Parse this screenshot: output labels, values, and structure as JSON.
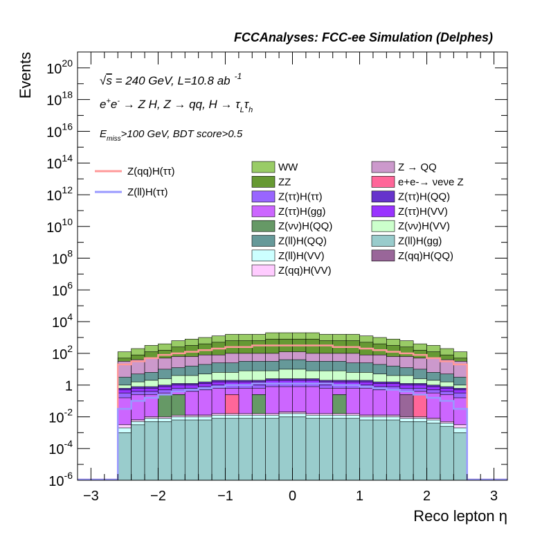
{
  "chart_data": {
    "type": "stacked-histogram",
    "title": "FCCAnalyses: FCC-ee Simulation (Delphes)",
    "xlabel": "Reco lepton η",
    "ylabel": "Events",
    "xlim": [
      -3.2,
      3.2
    ],
    "ylim_log10": [
      -6,
      21
    ],
    "y_scale": "log",
    "grid": false,
    "x_ticks": [
      "−3",
      "−2",
      "−1",
      "0",
      "1",
      "2",
      "3"
    ],
    "y_ticks": [
      {
        "base": "10",
        "exp": "20",
        "log": 20
      },
      {
        "base": "10",
        "exp": "18",
        "log": 18
      },
      {
        "base": "10",
        "exp": "16",
        "log": 16
      },
      {
        "base": "10",
        "exp": "14",
        "log": 14
      },
      {
        "base": "10",
        "exp": "12",
        "log": 12
      },
      {
        "base": "10",
        "exp": "10",
        "log": 10
      },
      {
        "base": "10",
        "exp": "8",
        "log": 8
      },
      {
        "base": "10",
        "exp": "6",
        "log": 6
      },
      {
        "base": "10",
        "exp": "4",
        "log": 4
      },
      {
        "base": "10",
        "exp": "2",
        "log": 2
      },
      {
        "base": "1",
        "exp": "",
        "log": 0
      },
      {
        "base": "10",
        "exp": "-2",
        "log": -2
      },
      {
        "base": "10",
        "exp": "-4",
        "log": -4
      },
      {
        "base": "10",
        "exp": "-6",
        "log": -6
      }
    ],
    "annotations": {
      "energy": {
        "sqrt": "√",
        "s": "s",
        "text": " = 240 GeV, L=10.8 ab",
        "sup": "-1"
      },
      "process": {
        "ep": "e",
        "epsup": "+",
        "em": "e",
        "emsup": "-",
        "rest": " → Z H, Z  → qq, H  → τ",
        "sub1": "L",
        "tau2": "τ",
        "sub2": "h"
      },
      "cuts": {
        "e": "E",
        "sub": "miss",
        "rest": ">100 GeV, BDT score>0.5"
      }
    },
    "bin_edges_start": -2.6,
    "bin_width": 0.2,
    "n_bins": 26,
    "stack_order": [
      "Z(ll)H(gg)",
      "Z(ll)H(VV)",
      "Z(qq)H(VV)",
      "Z(νν)H(QQ)",
      "e+e-→νeνe Z",
      "Z(qq)H(QQ)",
      "Z(ττ)H(gg)",
      "Z(ττ)H(ττ)",
      "Z(ττ)H(VV)",
      "Z(ττ)H(QQ)",
      "Z(νν)H(VV)",
      "Z(ll)H(QQ)",
      "Z → QQ",
      "ZZ",
      "WW"
    ],
    "stacked_series": [
      {
        "name": "Z(ll)H(gg)",
        "color": "#99cccc",
        "log10_values": [
          -3.0,
          -2.5,
          -2.3,
          -2.3,
          -2.2,
          -2.2,
          -2.2,
          -2.1,
          -2.1,
          -2.1,
          -2.1,
          -2.1,
          -2.0,
          -2.0,
          -2.1,
          -2.1,
          -2.1,
          -2.1,
          -2.2,
          -2.2,
          -2.2,
          -2.3,
          -2.3,
          -2.4,
          -2.6,
          -3.0
        ]
      },
      {
        "name": "Z(ll)H(VV)",
        "color": "#ccffff",
        "log10_values": [
          -2.7,
          -2.3,
          -2.1,
          -2.1,
          -2.0,
          -2.0,
          -2.0,
          -1.9,
          -1.9,
          -1.9,
          -1.9,
          -1.9,
          -1.8,
          -1.8,
          -1.9,
          -1.9,
          -1.9,
          -1.9,
          -2.0,
          -2.0,
          -2.0,
          -2.1,
          -2.1,
          -2.2,
          -2.4,
          -2.7
        ]
      },
      {
        "name": "Z(qq)H(VV)",
        "color": "#ffccff",
        "log10_values": [
          -2.5,
          -2.2,
          -2.0,
          -2.0,
          -1.9,
          -1.9,
          -1.9,
          -1.8,
          -1.8,
          -1.8,
          -1.8,
          -1.8,
          -1.7,
          -1.7,
          -1.8,
          -1.8,
          -1.8,
          -1.8,
          -1.9,
          -1.9,
          -1.9,
          -2.0,
          -2.0,
          -2.1,
          -2.3,
          -2.5
        ]
      },
      {
        "name": "Z(νν)H(QQ)",
        "color": "#669966",
        "log10_values": [
          -2.5,
          -2.2,
          -2.0,
          -0.6,
          -0.6,
          -1.9,
          -1.9,
          -1.8,
          -1.8,
          -1.8,
          -0.6,
          -1.8,
          -1.7,
          -1.7,
          -1.8,
          -1.8,
          -0.6,
          -1.8,
          -1.9,
          -1.9,
          -1.9,
          -2.0,
          -2.0,
          -2.1,
          -2.3,
          -2.5
        ]
      },
      {
        "name": "e+e-→νeνe Z",
        "color": "#ff6699",
        "log10_values": [
          -2.5,
          -2.2,
          -2.0,
          -0.6,
          -0.6,
          -1.9,
          -1.9,
          -1.8,
          -0.6,
          -1.8,
          -0.6,
          -1.8,
          -1.7,
          -1.7,
          -1.8,
          -1.8,
          -0.6,
          -1.8,
          -1.9,
          -1.9,
          -1.9,
          -2.0,
          -0.6,
          -2.1,
          -2.3,
          -2.5
        ]
      },
      {
        "name": "Z(qq)H(QQ)",
        "color": "#996699",
        "log10_values": [
          -2.5,
          -2.2,
          -2.0,
          -0.6,
          -0.6,
          -1.9,
          -1.9,
          -1.8,
          -0.6,
          -1.8,
          -0.6,
          -1.8,
          -1.7,
          -1.7,
          -1.8,
          -1.8,
          -0.6,
          -1.8,
          -1.9,
          -1.9,
          -1.9,
          -0.6,
          -0.6,
          -2.1,
          -2.3,
          -2.5
        ]
      },
      {
        "name": "Z(ττ)H(gg)",
        "color": "#cc66ff",
        "log10_values": [
          -0.8,
          -0.6,
          -0.6,
          -0.5,
          -0.4,
          -0.4,
          -0.3,
          -0.2,
          -0.2,
          -0.2,
          -0.2,
          -0.1,
          -0.1,
          -0.1,
          -0.1,
          -0.2,
          -0.2,
          -0.2,
          -0.2,
          -0.3,
          -0.3,
          -0.4,
          -0.4,
          -0.5,
          -0.6,
          -0.8
        ]
      },
      {
        "name": "Z(ττ)H(ττ)",
        "color": "#9966ff",
        "log10_values": [
          -0.5,
          -0.4,
          -0.4,
          -0.3,
          -0.2,
          -0.2,
          -0.1,
          0.0,
          0.0,
          0.0,
          0.0,
          0.1,
          0.1,
          0.1,
          0.1,
          0.0,
          0.0,
          0.0,
          0.0,
          -0.1,
          -0.1,
          -0.2,
          -0.2,
          -0.3,
          -0.4,
          -0.5
        ]
      },
      {
        "name": "Z(ττ)H(VV)",
        "color": "#9933ff",
        "log10_values": [
          -0.3,
          -0.2,
          -0.2,
          -0.1,
          0.0,
          0.0,
          0.1,
          0.2,
          0.2,
          0.2,
          0.2,
          0.3,
          0.3,
          0.3,
          0.3,
          0.2,
          0.2,
          0.2,
          0.2,
          0.1,
          0.1,
          0.0,
          0.0,
          -0.1,
          -0.2,
          -0.3
        ]
      },
      {
        "name": "Z(ττ)H(QQ)",
        "color": "#6633cc",
        "log10_values": [
          -0.2,
          -0.1,
          -0.1,
          0.0,
          0.1,
          0.1,
          0.2,
          0.3,
          0.3,
          0.3,
          0.3,
          0.4,
          0.4,
          0.4,
          0.4,
          0.3,
          0.3,
          0.3,
          0.3,
          0.2,
          0.2,
          0.1,
          0.1,
          0.0,
          -0.1,
          -0.2
        ]
      },
      {
        "name": "Z(νν)H(VV)",
        "color": "#ccffcc",
        "log10_values": [
          0.0,
          0.2,
          0.3,
          0.4,
          0.6,
          0.6,
          0.7,
          0.8,
          0.8,
          0.9,
          0.9,
          0.9,
          1.0,
          1.0,
          0.9,
          0.9,
          0.9,
          0.8,
          0.8,
          0.7,
          0.6,
          0.6,
          0.4,
          0.3,
          0.2,
          0.0
        ]
      },
      {
        "name": "Z(ll)H(QQ)",
        "color": "#669999",
        "log10_values": [
          0.5,
          0.7,
          0.8,
          1.0,
          1.1,
          1.2,
          1.3,
          1.4,
          1.4,
          1.5,
          1.5,
          1.5,
          1.6,
          1.6,
          1.5,
          1.5,
          1.5,
          1.4,
          1.4,
          1.3,
          1.2,
          1.1,
          1.0,
          0.8,
          0.7,
          0.5
        ]
      },
      {
        "name": "Z → QQ",
        "color": "#cc99cc",
        "log10_values": [
          1.5,
          1.6,
          1.7,
          1.7,
          1.8,
          1.8,
          1.9,
          1.9,
          2.0,
          2.0,
          2.0,
          2.0,
          2.1,
          2.1,
          2.0,
          2.0,
          2.0,
          2.0,
          1.9,
          1.9,
          1.8,
          1.8,
          1.7,
          1.7,
          1.6,
          1.5
        ]
      },
      {
        "name": "ZZ",
        "color": "#669933",
        "log10_values": [
          1.7,
          1.9,
          2.1,
          2.2,
          2.4,
          2.5,
          2.6,
          2.7,
          2.8,
          2.8,
          2.8,
          2.9,
          2.9,
          2.9,
          2.9,
          2.8,
          2.8,
          2.8,
          2.7,
          2.6,
          2.5,
          2.4,
          2.2,
          2.1,
          1.9,
          1.7
        ]
      },
      {
        "name": "WW",
        "color": "#99cc66",
        "log10_values": [
          2.1,
          2.3,
          2.5,
          2.6,
          2.8,
          2.9,
          3.0,
          3.1,
          3.2,
          3.2,
          3.2,
          3.3,
          3.3,
          3.3,
          3.3,
          3.2,
          3.2,
          3.2,
          3.1,
          3.0,
          2.9,
          2.8,
          2.6,
          2.5,
          2.3,
          2.1
        ]
      }
    ],
    "line_series": [
      {
        "name": "Z(qq)H(ττ)",
        "color": "#ff9999",
        "log10_values": [
          1.3,
          1.5,
          1.7,
          1.9,
          2.0,
          2.1,
          2.2,
          2.3,
          2.4,
          2.4,
          2.5,
          2.5,
          2.5,
          2.5,
          2.5,
          2.5,
          2.4,
          2.4,
          2.3,
          2.2,
          2.1,
          2.0,
          1.9,
          1.7,
          1.5,
          1.3
        ]
      },
      {
        "name": "Z(ll)H(ττ)",
        "color": "#9999ff",
        "log10_values": [
          -1.5,
          -1.0,
          -0.8,
          -0.6,
          -0.4,
          -0.3,
          -0.2,
          -0.1,
          0.0,
          0.0,
          0.1,
          0.1,
          0.1,
          0.1,
          0.1,
          0.1,
          0.0,
          0.0,
          -0.1,
          -0.2,
          -0.3,
          -0.4,
          -0.6,
          -0.8,
          -1.0,
          -1.5
        ]
      }
    ],
    "legend_left": [
      {
        "name": "Z(qq)H(ττ)",
        "color": "#ff9999"
      },
      {
        "name": "Z(ll)H(ττ)",
        "color": "#9999ff"
      }
    ],
    "legend_col1": [
      {
        "name": "WW",
        "color": "#99cc66"
      },
      {
        "name": "ZZ",
        "color": "#669933"
      },
      {
        "name": "Z(ττ)H(ττ)",
        "color": "#9966ff"
      },
      {
        "name": "Z(ττ)H(gg)",
        "color": "#cc66ff"
      },
      {
        "name": "Z(νν)H(QQ)",
        "color": "#669966"
      },
      {
        "name": "Z(ll)H(QQ)",
        "color": "#669999"
      },
      {
        "name": "Z(ll)H(VV)",
        "color": "#ccffff"
      },
      {
        "name": "Z(qq)H(VV)",
        "color": "#ffccff"
      }
    ],
    "legend_col2": [
      {
        "name": "Z → QQ",
        "color": "#cc99cc"
      },
      {
        "name": "e+e-→ νeνe Z",
        "color": "#ff6699"
      },
      {
        "name": "Z(ττ)H(QQ)",
        "color": "#6633cc"
      },
      {
        "name": "Z(ττ)H(VV)",
        "color": "#9933ff"
      },
      {
        "name": "Z(νν)H(VV)",
        "color": "#ccffcc"
      },
      {
        "name": "Z(ll)H(gg)",
        "color": "#99cccc"
      },
      {
        "name": "Z(qq)H(QQ)",
        "color": "#996699"
      }
    ]
  }
}
